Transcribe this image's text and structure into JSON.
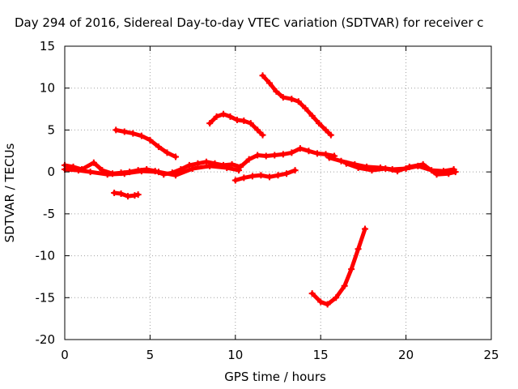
{
  "chart_data": {
    "type": "scatter",
    "title": "Day 294 of 2016, Sidereal Day-to-day VTEC variation (SDTVAR) for receiver c",
    "xlabel": "GPS time / hours",
    "ylabel": "SDTVAR / TECUs",
    "xlim": [
      0,
      25
    ],
    "ylim": [
      -20,
      15
    ],
    "xticks": [
      "0",
      "5",
      "10",
      "15",
      "20",
      "25"
    ],
    "yticks": [
      "-20",
      "-15",
      "-10",
      "-5",
      "0",
      "5",
      "10",
      "15"
    ],
    "grid": true,
    "marker_color": "#ff0000",
    "series": [
      {
        "x": [
          0.0,
          0.5,
          1.0,
          1.7,
          2.2,
          2.8,
          3.3,
          3.8,
          4.3,
          4.8,
          5.3,
          5.8,
          6.3,
          6.8,
          7.3,
          7.8,
          8.3,
          8.8,
          9.3,
          9.8,
          10.3,
          10.8,
          11.3,
          11.8,
          12.3,
          12.8,
          13.3,
          13.8,
          14.3,
          14.8,
          15.3,
          15.8
        ],
        "y": [
          0.8,
          0.6,
          0.3,
          1.1,
          0.2,
          -0.2,
          -0.1,
          0.0,
          0.2,
          0.3,
          0.1,
          -0.3,
          -0.1,
          0.3,
          0.8,
          1.0,
          1.2,
          1.0,
          0.8,
          0.9,
          0.6,
          1.5,
          2.0,
          1.9,
          2.0,
          2.1,
          2.3,
          2.8,
          2.5,
          2.2,
          2.1,
          1.9
        ]
      },
      {
        "x": [
          0.0,
          0.8,
          1.5,
          2.5,
          3.5,
          4.5,
          5.5,
          6.5,
          7.5,
          8.5,
          9.5,
          10.2
        ],
        "y": [
          0.3,
          0.2,
          0.0,
          -0.3,
          -0.2,
          0.1,
          0.0,
          -0.4,
          0.4,
          0.7,
          0.5,
          0.2
        ]
      },
      {
        "x": [
          3.0,
          3.5,
          4.0,
          4.5,
          5.0,
          5.5,
          6.0,
          6.5
        ],
        "y": [
          5.0,
          4.8,
          4.6,
          4.3,
          3.8,
          3.0,
          2.3,
          1.8
        ]
      },
      {
        "x": [
          2.9,
          3.3,
          3.7,
          4.1,
          4.3
        ],
        "y": [
          -2.5,
          -2.6,
          -2.9,
          -2.8,
          -2.7
        ]
      },
      {
        "x": [
          8.5,
          8.9,
          9.3,
          9.7,
          10.1,
          10.5,
          10.9,
          11.3,
          11.6
        ],
        "y": [
          5.8,
          6.6,
          6.9,
          6.6,
          6.2,
          6.1,
          5.8,
          5.0,
          4.4
        ]
      },
      {
        "x": [
          11.6,
          12.0,
          12.4,
          12.8,
          13.3,
          13.7,
          14.1,
          14.5,
          14.9,
          15.3,
          15.6
        ],
        "y": [
          11.5,
          10.6,
          9.6,
          8.9,
          8.7,
          8.4,
          7.6,
          6.7,
          5.8,
          5.0,
          4.4
        ]
      },
      {
        "x": [
          10.0,
          10.5,
          11.0,
          11.5,
          12.0,
          12.5,
          13.0,
          13.5
        ],
        "y": [
          -1.0,
          -0.7,
          -0.5,
          -0.4,
          -0.6,
          -0.4,
          -0.2,
          0.2
        ]
      },
      {
        "x": [
          14.5,
          15.0,
          15.4,
          15.9,
          16.4,
          16.8,
          17.2,
          17.6
        ],
        "y": [
          -14.5,
          -15.5,
          -15.8,
          -15.0,
          -13.6,
          -11.6,
          -9.2,
          -6.8
        ]
      },
      {
        "x": [
          15.5,
          16.2,
          17.0,
          17.7,
          18.5,
          19.2,
          20.0,
          20.7,
          21.5,
          22.2,
          22.8
        ],
        "y": [
          1.7,
          1.3,
          0.9,
          0.6,
          0.5,
          0.3,
          0.4,
          0.7,
          0.2,
          0.1,
          0.3
        ]
      },
      {
        "x": [
          16.5,
          17.2,
          18.0,
          18.8,
          19.5,
          20.2,
          21.0,
          21.8,
          22.5,
          22.9
        ],
        "y": [
          1.0,
          0.5,
          0.2,
          0.4,
          0.1,
          0.6,
          0.9,
          -0.3,
          -0.2,
          0.0
        ]
      }
    ]
  }
}
